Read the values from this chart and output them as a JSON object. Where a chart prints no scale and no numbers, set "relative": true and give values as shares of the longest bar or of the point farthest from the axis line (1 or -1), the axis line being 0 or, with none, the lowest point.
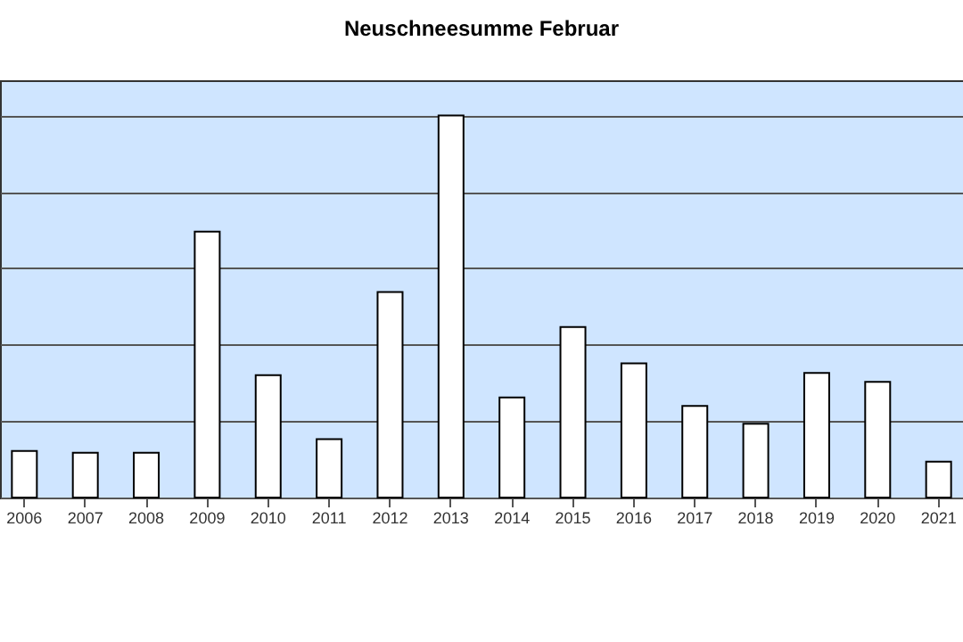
{
  "chart_data": {
    "type": "bar",
    "title": "Neuschneesumme Februar",
    "relative": true,
    "categories": [
      "2006",
      "2007",
      "2008",
      "2009",
      "2010",
      "2011",
      "2012",
      "2013",
      "2014",
      "2015",
      "2016",
      "2017",
      "2018",
      "2019",
      "2020",
      "2021"
    ],
    "values": [
      0.122,
      0.117,
      0.117,
      0.696,
      0.32,
      0.153,
      0.538,
      1,
      0.262,
      0.446,
      0.351,
      0.24,
      0.193,
      0.326,
      0.303,
      0.094
    ],
    "color": "#ffffff",
    "grid": "y"
  }
}
